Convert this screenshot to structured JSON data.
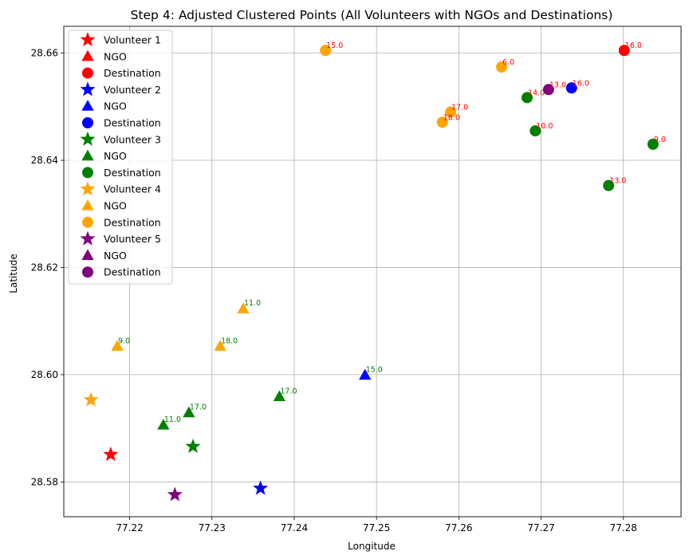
{
  "chart_data": {
    "type": "scatter",
    "title": "Step 4: Adjusted Clustered Points (All Volunteers with NGOs and Destinations)",
    "xlabel": "Longitude",
    "ylabel": "Latitude",
    "xlim": [
      77.212,
      77.287
    ],
    "ylim": [
      28.5735,
      28.665
    ],
    "xticks": [
      "77.22",
      "77.23",
      "77.24",
      "77.25",
      "77.26",
      "77.27",
      "77.28"
    ],
    "yticks": [
      "28.58",
      "28.60",
      "28.62",
      "28.64",
      "28.66"
    ],
    "grid": true,
    "legend_position": "top-left",
    "series": [
      {
        "color": "#ff0000",
        "volunteer_label": "Volunteer 1",
        "ngo_label": "NGO",
        "dest_label": "Destination",
        "volunteer": [
          77.2177,
          28.5851
        ],
        "ngos": [],
        "destinations": [
          {
            "x": 77.2801,
            "y": 28.6605,
            "label": "16.0"
          }
        ]
      },
      {
        "color": "#0000ff",
        "volunteer_label": "Volunteer 2",
        "ngo_label": "NGO",
        "dest_label": "Destination",
        "volunteer": [
          77.2359,
          28.5788
        ],
        "ngos": [
          {
            "x": 77.2486,
            "y": 28.5999,
            "label": "15.0"
          }
        ],
        "destinations": [
          {
            "x": 77.2737,
            "y": 28.6535,
            "label": "16.0"
          }
        ]
      },
      {
        "color": "#008000",
        "volunteer_label": "Volunteer 3",
        "ngo_label": "NGO",
        "dest_label": "Destination",
        "volunteer": [
          77.2277,
          28.5866
        ],
        "ngos": [
          {
            "x": 77.2241,
            "y": 28.5906,
            "label": "11.0"
          },
          {
            "x": 77.2272,
            "y": 28.5929,
            "label": "17.0"
          },
          {
            "x": 77.2382,
            "y": 28.5959,
            "label": "17.0"
          }
        ],
        "destinations": [
          {
            "x": 77.2683,
            "y": 28.6517,
            "label": "14.0"
          },
          {
            "x": 77.2693,
            "y": 28.6455,
            "label": "10.0"
          },
          {
            "x": 77.2836,
            "y": 28.643,
            "label": "9.0"
          },
          {
            "x": 77.2782,
            "y": 28.6353,
            "label": "13.0"
          }
        ]
      },
      {
        "color": "#ffa500",
        "volunteer_label": "Volunteer 4",
        "ngo_label": "NGO",
        "dest_label": "Destination",
        "volunteer": [
          77.2153,
          28.5953
        ],
        "ngos": [
          {
            "x": 77.2185,
            "y": 28.6053,
            "label": "9.0"
          },
          {
            "x": 77.231,
            "y": 28.6053,
            "label": "18.0"
          },
          {
            "x": 77.2338,
            "y": 28.6123,
            "label": "11.0"
          }
        ],
        "destinations": [
          {
            "x": 77.2438,
            "y": 28.6605,
            "label": "15.0"
          },
          {
            "x": 77.2652,
            "y": 28.6574,
            "label": "6.0"
          },
          {
            "x": 77.259,
            "y": 28.649,
            "label": "17.0"
          },
          {
            "x": 77.258,
            "y": 28.6471,
            "label": "18.0"
          }
        ]
      },
      {
        "color": "#800080",
        "volunteer_label": "Volunteer 5",
        "ngo_label": "NGO",
        "dest_label": "Destination",
        "volunteer": [
          77.2255,
          28.5776
        ],
        "ngos": [],
        "destinations": [
          {
            "x": 77.2709,
            "y": 28.6532,
            "label": "13.0"
          }
        ]
      }
    ]
  },
  "colors": {
    "ngo_annotation": "#008000",
    "destination_annotation": "#ff0000",
    "grid": "#b0b0b0"
  }
}
